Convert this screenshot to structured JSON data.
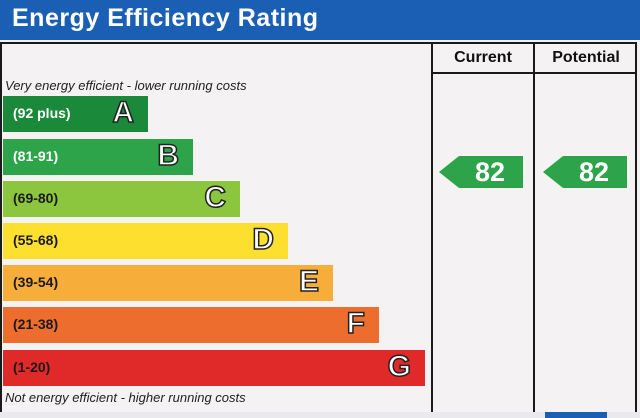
{
  "title": "Energy Efficiency Rating",
  "columns": {
    "current": "Current",
    "potential": "Potential"
  },
  "notes": {
    "top": "Very energy efficient - lower running costs",
    "bottom": "Not energy efficient - higher running costs"
  },
  "bands": [
    {
      "letter": "A",
      "range": "(92 plus)",
      "color": "#1a8a3a",
      "text_color": "#ffffff"
    },
    {
      "letter": "B",
      "range": "(81-91)",
      "color": "#2da44a",
      "text_color": "#ffffff"
    },
    {
      "letter": "C",
      "range": "(69-80)",
      "color": "#8cc63e",
      "text_color": "#1a1a1a"
    },
    {
      "letter": "D",
      "range": "(55-68)",
      "color": "#fde02f",
      "text_color": "#1a1a1a"
    },
    {
      "letter": "E",
      "range": "(39-54)",
      "color": "#f6ad3a",
      "text_color": "#1a1a1a"
    },
    {
      "letter": "F",
      "range": "(21-38)",
      "color": "#ec6d2d",
      "text_color": "#1a1a1a"
    },
    {
      "letter": "G",
      "range": "(1-20)",
      "color": "#e02a2a",
      "text_color": "#1a1a1a"
    }
  ],
  "ratings": {
    "current": {
      "value": "82",
      "band": "B",
      "color": "#2da44a"
    },
    "potential": {
      "value": "82",
      "band": "B",
      "color": "#2da44a"
    }
  }
}
